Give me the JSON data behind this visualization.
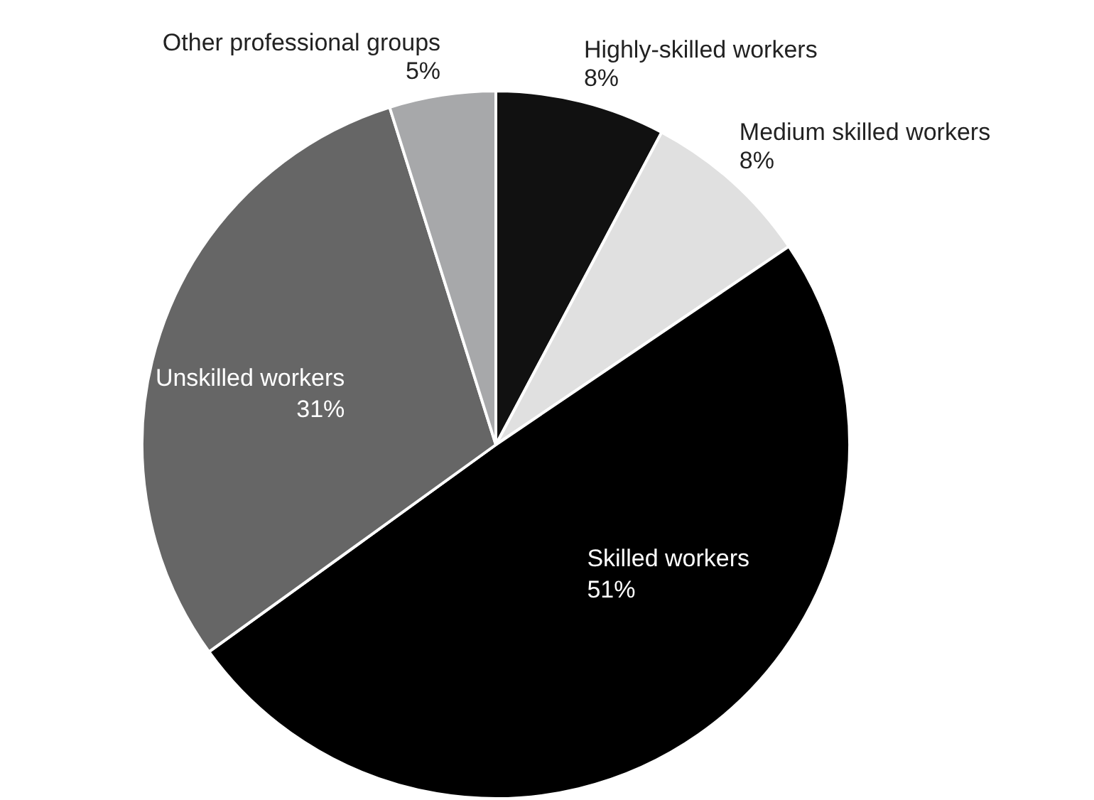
{
  "chart_data": {
    "type": "pie",
    "categories": [
      "Highly-skilled workers",
      "Medium skilled workers",
      "Skilled workers",
      "Unskilled workers",
      "Other professional groups"
    ],
    "values": [
      8,
      8,
      51,
      31,
      5
    ],
    "colors": [
      "#111111",
      "#e0e0e0",
      "#000000",
      "#666666",
      "#a7a8aa"
    ],
    "value_labels": [
      "8%",
      "8%",
      "51%",
      "31%",
      "5%"
    ],
    "legend": false
  }
}
